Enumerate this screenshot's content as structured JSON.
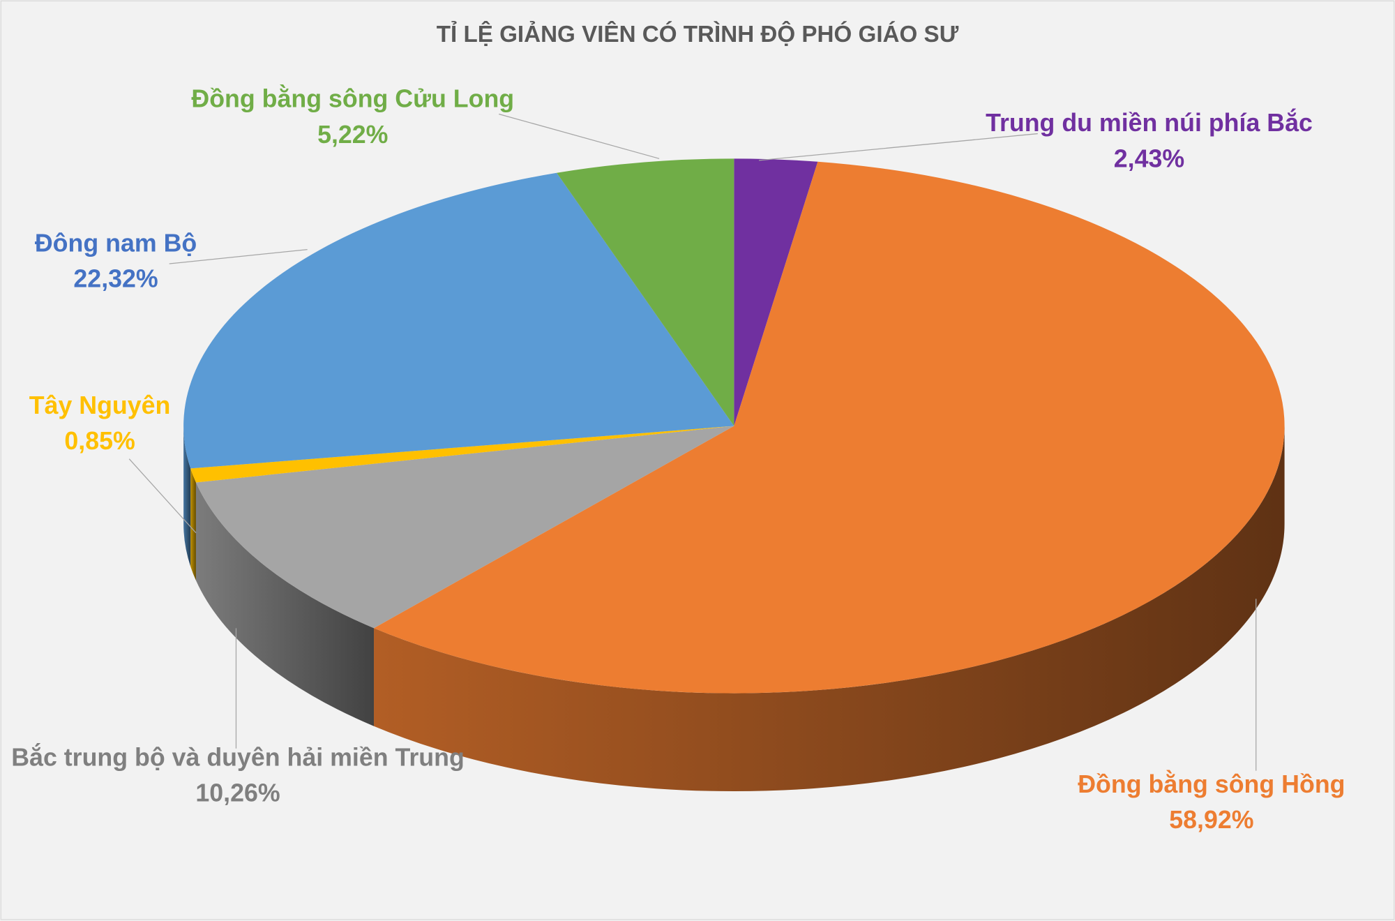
{
  "chart_data": {
    "type": "pie",
    "title": "TỈ LỆ GIẢNG VIÊN CÓ TRÌNH ĐỘ PHÓ GIÁO SƯ",
    "categories": [
      "Trung du miền núi phía Bắc",
      "Đồng bằng sông Hồng",
      "Bắc trung bộ và duyên hải miền Trung",
      "Tây Nguyên",
      "Đông nam Bộ",
      "Đồng bằng sông Cửu Long"
    ],
    "values": [
      2.43,
      58.92,
      10.26,
      0.85,
      22.32,
      5.22
    ],
    "value_labels": [
      "2,43%",
      "58,92%",
      "10,26%",
      "0,85%",
      "22,32%",
      "5,22%"
    ],
    "colors": [
      "#7030a0",
      "#ed7d31",
      "#a5a5a5",
      "#ffc000",
      "#5b9bd5",
      "#70ad47"
    ]
  }
}
